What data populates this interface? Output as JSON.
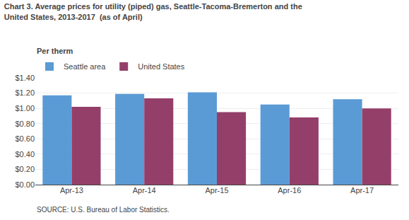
{
  "chart_data": {
    "type": "bar",
    "title": "Chart 3. Average prices for utility (piped) gas, Seattle-Tacoma-Bremerton and the\nUnited States, 2013-2017  (as of April)",
    "ylabel": "Per therm",
    "source": "SOURCE: U.S. Bureau of Labor Statistics.",
    "categories": [
      "Apr-13",
      "Apr-14",
      "Apr-15",
      "Apr-16",
      "Apr-17"
    ],
    "series": [
      {
        "name": "Seattle area",
        "color": "#5B9BD5",
        "values": [
          1.17,
          1.19,
          1.21,
          1.05,
          1.12
        ]
      },
      {
        "name": "United States",
        "color": "#943F6A",
        "values": [
          1.02,
          1.13,
          0.95,
          0.88,
          1.0
        ]
      }
    ],
    "ylim": [
      0,
      1.4
    ],
    "yticks": [
      {
        "value": 0.0,
        "label": "$0.00"
      },
      {
        "value": 0.2,
        "label": "$0.20"
      },
      {
        "value": 0.4,
        "label": "$0.40"
      },
      {
        "value": 0.6,
        "label": "$0.60"
      },
      {
        "value": 0.8,
        "label": "$0.80"
      },
      {
        "value": 1.0,
        "label": "$1.00"
      },
      {
        "value": 1.2,
        "label": "$1.20"
      },
      {
        "value": 1.4,
        "label": "$1.40"
      }
    ],
    "grid": true,
    "legend": "top left"
  }
}
